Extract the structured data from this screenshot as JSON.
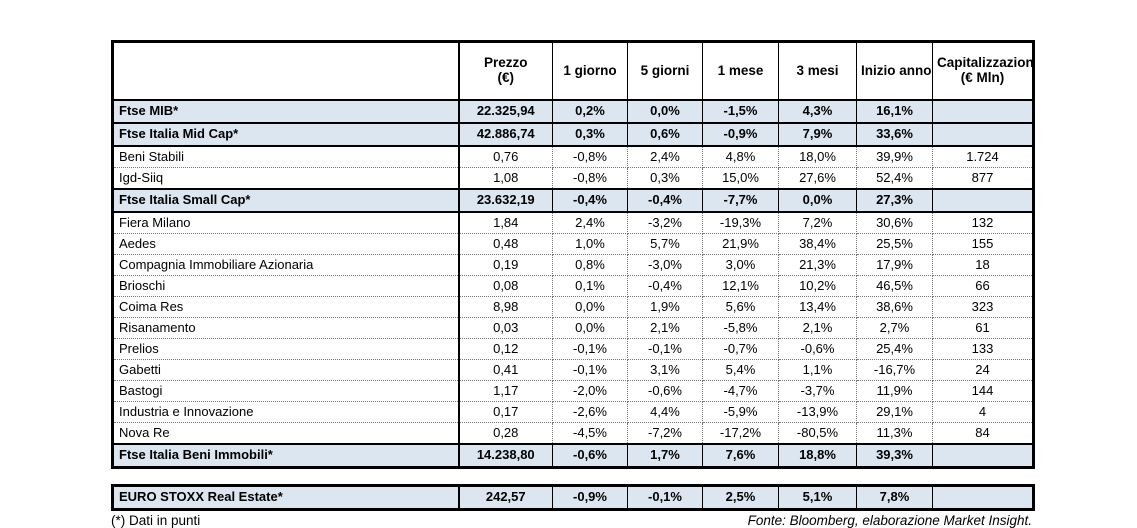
{
  "colors": {
    "highlight_row_bg": "#dce6f1",
    "border": "#000000",
    "text": "#000000"
  },
  "chart_data": {
    "type": "table",
    "columns": [
      [
        ""
      ],
      [
        "Prezzo",
        "(€)"
      ],
      [
        "1 giorno"
      ],
      [
        "5 giorni"
      ],
      [
        "1 mese"
      ],
      [
        "3 mesi"
      ],
      [
        "Inizio anno"
      ],
      [
        "Capitalizzazione",
        "(€ Mln)"
      ]
    ],
    "rows": [
      {
        "type": "index",
        "name": "Ftse MIB*",
        "values": [
          "22.325,94",
          "0,2%",
          "0,0%",
          "-1,5%",
          "4,3%",
          "16,1%",
          ""
        ]
      },
      {
        "type": "index",
        "name": "Ftse Italia Mid Cap*",
        "values": [
          "42.886,74",
          "0,3%",
          "0,6%",
          "-0,9%",
          "7,9%",
          "33,6%",
          ""
        ]
      },
      {
        "type": "stock",
        "name": "Beni Stabili",
        "values": [
          "0,76",
          "-0,8%",
          "2,4%",
          "4,8%",
          "18,0%",
          "39,9%",
          "1.724"
        ]
      },
      {
        "type": "stock",
        "name": "Igd-Siiq",
        "values": [
          "1,08",
          "-0,8%",
          "0,3%",
          "15,0%",
          "27,6%",
          "52,4%",
          "877"
        ]
      },
      {
        "type": "index",
        "name": "Ftse Italia Small Cap*",
        "values": [
          "23.632,19",
          "-0,4%",
          "-0,4%",
          "-7,7%",
          "0,0%",
          "27,3%",
          ""
        ]
      },
      {
        "type": "stock",
        "name": "Fiera Milano",
        "values": [
          "1,84",
          "2,4%",
          "-3,2%",
          "-19,3%",
          "7,2%",
          "30,6%",
          "132"
        ]
      },
      {
        "type": "stock",
        "name": "Aedes",
        "values": [
          "0,48",
          "1,0%",
          "5,7%",
          "21,9%",
          "38,4%",
          "25,5%",
          "155"
        ]
      },
      {
        "type": "stock",
        "name": "Compagnia Immobiliare Azionaria",
        "values": [
          "0,19",
          "0,8%",
          "-3,0%",
          "3,0%",
          "21,3%",
          "17,9%",
          "18"
        ]
      },
      {
        "type": "stock",
        "name": "Brioschi",
        "values": [
          "0,08",
          "0,1%",
          "-0,4%",
          "12,1%",
          "10,2%",
          "46,5%",
          "66"
        ]
      },
      {
        "type": "stock",
        "name": "Coima Res",
        "values": [
          "8,98",
          "0,0%",
          "1,9%",
          "5,6%",
          "13,4%",
          "38,6%",
          "323"
        ]
      },
      {
        "type": "stock",
        "name": "Risanamento",
        "values": [
          "0,03",
          "0,0%",
          "2,1%",
          "-5,8%",
          "2,1%",
          "2,7%",
          "61"
        ]
      },
      {
        "type": "stock",
        "name": "Prelios",
        "values": [
          "0,12",
          "-0,1%",
          "-0,1%",
          "-0,7%",
          "-0,6%",
          "25,4%",
          "133"
        ]
      },
      {
        "type": "stock",
        "name": "Gabetti",
        "values": [
          "0,41",
          "-0,1%",
          "3,1%",
          "5,4%",
          "1,1%",
          "-16,7%",
          "24"
        ]
      },
      {
        "type": "stock",
        "name": "Bastogi",
        "values": [
          "1,17",
          "-2,0%",
          "-0,6%",
          "-4,7%",
          "-3,7%",
          "11,9%",
          "144"
        ]
      },
      {
        "type": "stock",
        "name": "Industria e Innovazione",
        "values": [
          "0,17",
          "-2,6%",
          "4,4%",
          "-5,9%",
          "-13,9%",
          "29,1%",
          "4"
        ]
      },
      {
        "type": "stock",
        "name": "Nova Re",
        "values": [
          "0,28",
          "-4,5%",
          "-7,2%",
          "-17,2%",
          "-80,5%",
          "11,3%",
          "84"
        ]
      },
      {
        "type": "index",
        "name": "Ftse Italia Beni Immobili*",
        "values": [
          "14.238,80",
          "-0,6%",
          "1,7%",
          "7,6%",
          "18,8%",
          "39,3%",
          ""
        ]
      }
    ],
    "secondary_rows": [
      {
        "type": "index",
        "name": "EURO STOXX Real Estate*",
        "values": [
          "242,57",
          "-0,9%",
          "-0,1%",
          "2,5%",
          "5,1%",
          "7,8%",
          ""
        ]
      }
    ],
    "footnote_left": "(*) Dati in punti",
    "footnote_right": "Fonte: Bloomberg, elaborazione Market Insight."
  }
}
